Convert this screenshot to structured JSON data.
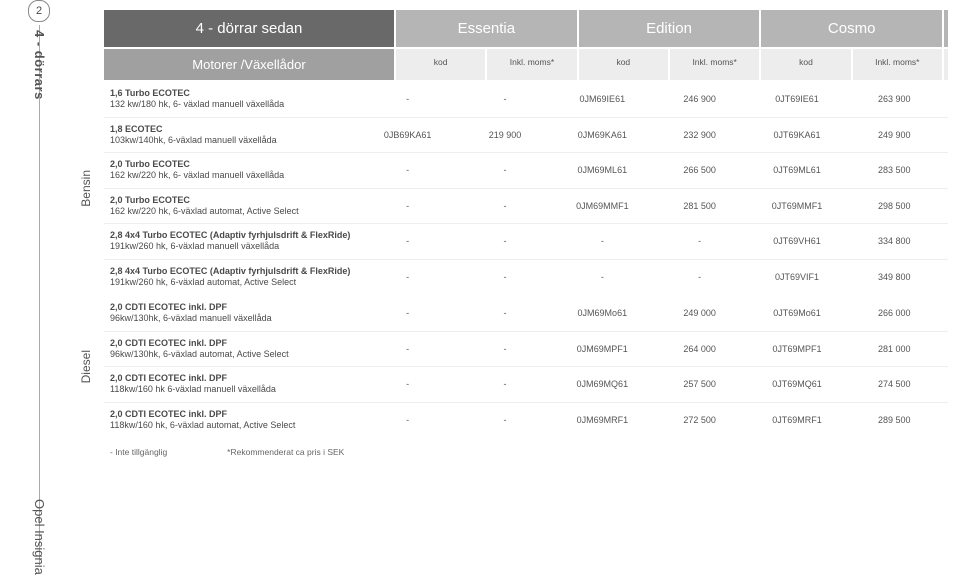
{
  "page_number": "2",
  "left_rail": "4 - dörrars",
  "bottom_rail": "Opel Insignia",
  "header": {
    "group_label": "4 - dörrar sedan",
    "trims": [
      "Essentia",
      "Edition",
      "Cosmo"
    ]
  },
  "subheader": {
    "group_label": "Motorer /Växellådor",
    "cols": [
      "kod",
      "Inkl. moms*",
      "kod",
      "Inkl. moms*",
      "kod",
      "Inkl. moms*"
    ]
  },
  "fuel_groups": [
    {
      "label": "Bensin",
      "rows": [
        {
          "title": "1,6 Turbo ECOTEC",
          "sub": "132 kw/180 hk, 6- växlad manuell växellåda",
          "cells": [
            "-",
            "-",
            "0JM69IE61",
            "246 900",
            "0JT69IE61",
            "263 900"
          ]
        },
        {
          "title": "1,8 ECOTEC",
          "sub": "103kw/140hk, 6-växlad manuell växellåda",
          "cells": [
            "0JB69KA61",
            "219 900",
            "0JM69KA61",
            "232 900",
            "0JT69KA61",
            "249 900"
          ]
        },
        {
          "title": "2,0 Turbo ECOTEC",
          "sub": "162 kw/220 hk, 6- växlad manuell växellåda",
          "cells": [
            "-",
            "-",
            "0JM69ML61",
            "266 500",
            "0JT69ML61",
            "283 500"
          ]
        },
        {
          "title": "2,0 Turbo ECOTEC",
          "sub": "162 kw/220 hk, 6-växlad automat, Active Select",
          "cells": [
            "-",
            "-",
            "0JM69MMF1",
            "281 500",
            "0JT69MMF1",
            "298 500"
          ]
        },
        {
          "title": "2,8 4x4 Turbo ECOTEC (Adaptiv fyrhjulsdrift & FlexRide)",
          "sub": "191kw/260 hk, 6-växlad manuell växellåda",
          "cells": [
            "-",
            "-",
            "-",
            "-",
            "0JT69VH61",
            "334 800"
          ]
        },
        {
          "title": "2,8 4x4 Turbo ECOTEC (Adaptiv fyrhjulsdrift & FlexRide)",
          "sub": "191kw/260 hk, 6-växlad automat, Active Select",
          "cells": [
            "-",
            "-",
            "-",
            "-",
            "0JT69VIF1",
            "349 800"
          ]
        }
      ]
    },
    {
      "label": "Diesel",
      "rows": [
        {
          "title": "2,0 CDTI ECOTEC inkl. DPF",
          "sub": "96kw/130hk, 6-växlad manuell växellåda",
          "cells": [
            "-",
            "-",
            "0JM69Mo61",
            "249 000",
            "0JT69Mo61",
            "266 000"
          ]
        },
        {
          "title": "2,0 CDTI ECOTEC inkl. DPF",
          "sub": "96kw/130hk, 6-växlad automat, Active Select",
          "cells": [
            "-",
            "-",
            "0JM69MPF1",
            "264 000",
            "0JT69MPF1",
            "281 000"
          ]
        },
        {
          "title": "2,0 CDTI ECOTEC inkl. DPF",
          "sub": "118kw/160 hk 6-växlad manuell växellåda",
          "cells": [
            "-",
            "-",
            "0JM69MQ61",
            "257 500",
            "0JT69MQ61",
            "274 500"
          ]
        },
        {
          "title": "2,0 CDTI ECOTEC inkl. DPF",
          "sub": "118kw/160 hk, 6-växlad automat, Active Select",
          "cells": [
            "-",
            "-",
            "0JM69MRF1",
            "272 500",
            "0JT69MRF1",
            "289 500"
          ]
        }
      ]
    }
  ],
  "footnote": {
    "left": "-  Inte tillgänglig",
    "right": "*Rekommenderat ca pris i SEK"
  },
  "colors": {
    "header_bg": "#696969",
    "trim_bg": "#b5b5b5",
    "sub_bg": "#ededed",
    "text": "#4a4a4a"
  }
}
